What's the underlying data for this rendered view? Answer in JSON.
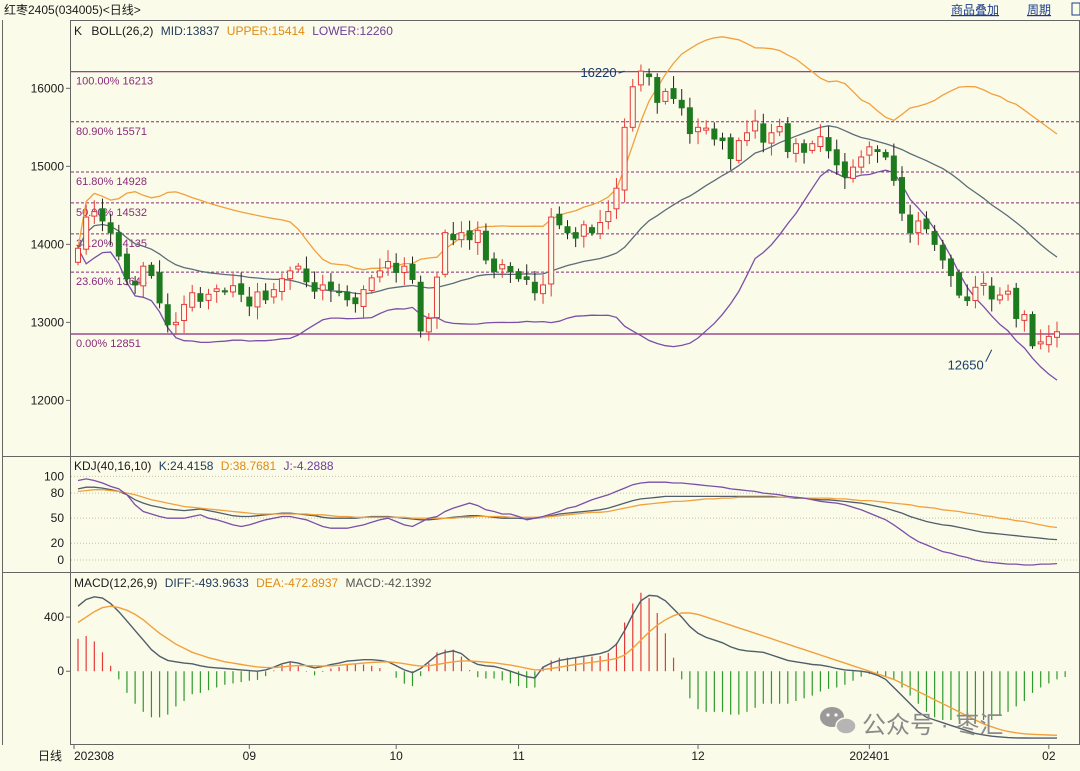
{
  "header": {
    "instrument": "红枣2405",
    "code": "(034005)",
    "period": "<日线>",
    "links": [
      "商品叠加",
      "周期"
    ]
  },
  "watermark": "公众号 · 枣汇",
  "colors": {
    "background": "#FBFBEA",
    "up": "#E63A3A",
    "down": "#1E7A1E",
    "mid": "#5C6C7A",
    "upper": "#F2A03C",
    "lower": "#7B4FA8",
    "fib": "#8A2B7A",
    "k": "#4F5E6A",
    "d": "#F2A03C",
    "j": "#7B4FA8",
    "diff": "#4F5E6A",
    "dea": "#F2A03C",
    "macd_pos": "#E63A3A",
    "macd_neg": "#2E9A2E"
  },
  "chart_data": [
    {
      "type": "candlestick",
      "legend": {
        "k": "K",
        "indicator": "BOLL(26,2)",
        "mid_label": "MID:13837",
        "upper_label": "UPPER:15414",
        "lower_label": "LOWER:12260"
      },
      "yticks": [
        16000,
        15000,
        14000,
        13000,
        12000
      ],
      "ylim": [
        11300,
        16850
      ],
      "xticks": [
        {
          "label": "202308",
          "index": 0
        },
        {
          "label": "09",
          "index": 21
        },
        {
          "label": "10",
          "index": 39
        },
        {
          "label": "11",
          "index": 54
        },
        {
          "label": "12",
          "index": 76
        },
        {
          "label": "202401",
          "index": 97
        },
        {
          "label": "02",
          "index": 119
        }
      ],
      "fib_levels": [
        {
          "label": "100.00% 16213",
          "value": 16213
        },
        {
          "label": "80.90% 15571",
          "value": 15571
        },
        {
          "label": "61.80% 14928",
          "value": 14928
        },
        {
          "label": "50.00% 14532",
          "value": 14532
        },
        {
          "label": "38.20% 14135",
          "value": 14135
        },
        {
          "label": "23.60% 13644",
          "value": 13644
        },
        {
          "label": "0.00% 12851",
          "value": 12851
        }
      ],
      "annotations": [
        {
          "text": "16220",
          "index": 67,
          "value": 16220
        },
        {
          "text": "12650",
          "index": 112,
          "value": 12650
        }
      ],
      "closes": [
        13950,
        14350,
        14420,
        14300,
        14150,
        13850,
        13560,
        13480,
        13720,
        13600,
        13250,
        12970,
        13000,
        13230,
        13380,
        13270,
        13360,
        13430,
        13390,
        13470,
        13360,
        13210,
        13390,
        13290,
        13420,
        13560,
        13660,
        13720,
        13520,
        13400,
        13480,
        13420,
        13390,
        13290,
        13240,
        13420,
        13570,
        13660,
        13780,
        13640,
        13720,
        13550,
        12890,
        13050,
        13580,
        14150,
        14060,
        14150,
        14060,
        14180,
        13800,
        13650,
        13740,
        13650,
        13560,
        13550,
        13380,
        13480,
        14350,
        14250,
        14150,
        14080,
        14250,
        14150,
        14280,
        14420,
        14720,
        15500,
        16020,
        16220,
        16150,
        15820,
        15960,
        15870,
        15750,
        15420,
        15500,
        15490,
        15350,
        15330,
        15100,
        15330,
        15430,
        15580,
        15310,
        15430,
        15510,
        15190,
        15290,
        15180,
        15290,
        15380,
        15200,
        15020,
        14870,
        14990,
        15120,
        15250,
        15190,
        15120,
        14820,
        14400,
        14150,
        14300,
        14200,
        14000,
        13800,
        13600,
        13350,
        13280,
        13450,
        13500,
        13300,
        13350,
        13400,
        13050,
        13100,
        12700,
        12750,
        12820,
        12880
      ],
      "boll": {
        "mid_last": 13837,
        "upper_last": 15414,
        "lower_last": 12260
      }
    },
    {
      "type": "line",
      "legend": {
        "indicator": "KDJ(40,16,10)",
        "k_label": "K:24.4158",
        "d_label": "D:38.7681",
        "j_label": "J:-4.2888"
      },
      "yticks": [
        100,
        80,
        50,
        20,
        0
      ],
      "ylim": [
        -12,
        110
      ],
      "series": [
        {
          "name": "K",
          "values": [
            85,
            87,
            87,
            86,
            84,
            82,
            78,
            72,
            68,
            65,
            63,
            61,
            60,
            59,
            60,
            61,
            59,
            57,
            55,
            53,
            52,
            52,
            53,
            54,
            55,
            56,
            56,
            55,
            54,
            53,
            51,
            50,
            50,
            50,
            50,
            51,
            52,
            52,
            52,
            51,
            50,
            49,
            48,
            48,
            49,
            50,
            51,
            52,
            53,
            53,
            52,
            51,
            50,
            50,
            50,
            49,
            50,
            51,
            53,
            55,
            56,
            57,
            58,
            59,
            60,
            62,
            65,
            68,
            71,
            73,
            74,
            75,
            76,
            76,
            76,
            76,
            76,
            76,
            76,
            76,
            76,
            76,
            76,
            76,
            76,
            76,
            75,
            75,
            74,
            74,
            73,
            72,
            72,
            71,
            70,
            69,
            68,
            66,
            64,
            62,
            59,
            56,
            52,
            49,
            46,
            44,
            42,
            41,
            39,
            37,
            35,
            33,
            32,
            31,
            30,
            29,
            28,
            27,
            26,
            25,
            24.4
          ]
        },
        {
          "name": "D",
          "values": [
            82,
            83,
            84,
            84,
            83,
            82,
            80,
            78,
            75,
            72,
            70,
            68,
            66,
            64,
            63,
            62,
            61,
            60,
            59,
            58,
            57,
            56,
            55,
            55,
            55,
            55,
            55,
            55,
            55,
            54,
            54,
            53,
            52,
            52,
            51,
            51,
            51,
            51,
            51,
            51,
            51,
            50,
            50,
            50,
            50,
            50,
            50,
            51,
            51,
            52,
            52,
            52,
            52,
            51,
            51,
            51,
            51,
            51,
            52,
            53,
            54,
            55,
            56,
            57,
            57,
            58,
            60,
            62,
            64,
            66,
            67,
            68,
            69,
            70,
            70,
            71,
            72,
            73,
            73,
            74,
            74,
            75,
            75,
            75,
            75,
            75,
            75,
            75,
            75,
            74,
            74,
            74,
            74,
            73,
            73,
            72,
            71,
            71,
            70,
            69,
            68,
            67,
            66,
            64,
            63,
            62,
            60,
            59,
            58,
            56,
            55,
            53,
            52,
            50,
            49,
            47,
            46,
            44,
            42,
            40,
            38.8
          ]
        },
        {
          "name": "J",
          "values": [
            95,
            97,
            95,
            92,
            88,
            85,
            78,
            66,
            58,
            55,
            52,
            50,
            50,
            50,
            52,
            54,
            50,
            48,
            45,
            42,
            40,
            42,
            45,
            48,
            50,
            52,
            52,
            50,
            48,
            44,
            40,
            38,
            38,
            38,
            40,
            42,
            45,
            48,
            50,
            46,
            42,
            40,
            45,
            50,
            52,
            58,
            62,
            65,
            68,
            65,
            60,
            58,
            55,
            55,
            52,
            48,
            50,
            52,
            55,
            58,
            62,
            64,
            68,
            72,
            75,
            78,
            82,
            86,
            90,
            92,
            93,
            93,
            93,
            92,
            92,
            91,
            90,
            89,
            88,
            87,
            85,
            84,
            83,
            82,
            80,
            79,
            78,
            76,
            75,
            74,
            72,
            70,
            69,
            68,
            66,
            63,
            60,
            56,
            52,
            48,
            42,
            35,
            28,
            22,
            18,
            14,
            10,
            8,
            5,
            3,
            0,
            -2,
            -3,
            -4,
            -5,
            -5,
            -6,
            -6,
            -5,
            -5,
            -4.3
          ]
        }
      ]
    },
    {
      "type": "line",
      "legend": {
        "indicator": "MACD(12,26,9)",
        "diff_label": "DIFF:-493.9633",
        "dea_label": "DEA:-472.8937",
        "macd_label": "MACD:-42.1392"
      },
      "yticks": [
        400,
        0
      ],
      "ylim": [
        -530,
        600
      ],
      "series": [
        {
          "name": "DIFF",
          "values": [
            480,
            530,
            550,
            540,
            500,
            440,
            370,
            300,
            230,
            160,
            110,
            80,
            70,
            60,
            55,
            40,
            30,
            25,
            20,
            15,
            10,
            5,
            0,
            10,
            30,
            55,
            70,
            60,
            40,
            25,
            35,
            50,
            60,
            75,
            80,
            85,
            85,
            80,
            70,
            40,
            10,
            -10,
            20,
            70,
            120,
            140,
            150,
            130,
            80,
            50,
            40,
            35,
            20,
            0,
            -20,
            -40,
            -50,
            30,
            60,
            80,
            90,
            100,
            110,
            120,
            130,
            150,
            200,
            300,
            420,
            520,
            560,
            555,
            520,
            460,
            400,
            330,
            280,
            250,
            230,
            210,
            180,
            160,
            150,
            145,
            140,
            120,
            100,
            80,
            70,
            60,
            50,
            45,
            35,
            20,
            10,
            5,
            0,
            -10,
            -30,
            -60,
            -120,
            -180,
            -240,
            -300,
            -340,
            -360,
            -380,
            -400,
            -420,
            -440,
            -460,
            -470,
            -480,
            -485,
            -490,
            -492,
            -493,
            -494,
            -494,
            -494,
            -494
          ]
        },
        {
          "name": "DEA",
          "values": [
            360,
            400,
            440,
            470,
            480,
            470,
            450,
            420,
            380,
            330,
            280,
            240,
            200,
            170,
            140,
            120,
            100,
            85,
            70,
            60,
            50,
            40,
            32,
            28,
            27,
            32,
            38,
            42,
            42,
            40,
            38,
            40,
            44,
            50,
            55,
            60,
            65,
            68,
            70,
            64,
            56,
            45,
            38,
            40,
            50,
            60,
            70,
            76,
            76,
            72,
            67,
            62,
            54,
            45,
            35,
            22,
            10,
            12,
            20,
            30,
            40,
            50,
            58,
            66,
            74,
            82,
            95,
            120,
            170,
            230,
            290,
            340,
            380,
            410,
            430,
            430,
            420,
            400,
            380,
            360,
            340,
            320,
            300,
            280,
            260,
            240,
            220,
            200,
            180,
            160,
            140,
            120,
            100,
            80,
            60,
            40,
            20,
            0,
            -20,
            -40,
            -60,
            -90,
            -120,
            -150,
            -180,
            -210,
            -240,
            -270,
            -300,
            -330,
            -360,
            -390,
            -410,
            -430,
            -445,
            -455,
            -462,
            -466,
            -469,
            -471,
            -473
          ]
        },
        {
          "name": "MACD",
          "values": [
            240,
            260,
            220,
            140,
            40,
            -60,
            -160,
            -240,
            -300,
            -340,
            -340,
            -320,
            -260,
            -220,
            -170,
            -160,
            -140,
            -120,
            -100,
            -90,
            -80,
            -70,
            -64,
            -36,
            6,
            46,
            64,
            36,
            -4,
            -30,
            -6,
            20,
            32,
            50,
            50,
            50,
            40,
            24,
            0,
            -48,
            -92,
            -110,
            -36,
            60,
            140,
            160,
            160,
            108,
            8,
            -44,
            -54,
            -54,
            -68,
            -90,
            -110,
            -124,
            -120,
            36,
            80,
            100,
            100,
            100,
            104,
            108,
            112,
            136,
            210,
            360,
            500,
            580,
            540,
            430,
            280,
            100,
            -60,
            -200,
            -280,
            -300,
            -300,
            -300,
            -320,
            -320,
            -300,
            -270,
            -240,
            -240,
            -240,
            -240,
            -220,
            -200,
            -180,
            -150,
            -130,
            -120,
            -100,
            -70,
            -40,
            -20,
            -20,
            -40,
            -60,
            -120,
            -180,
            -240,
            -300,
            -340,
            -360,
            -360,
            -360,
            -360,
            -360,
            -360,
            -360,
            -320,
            -300,
            -260,
            -220,
            -160,
            -120,
            -90,
            -60,
            -42.1
          ]
        }
      ]
    }
  ]
}
